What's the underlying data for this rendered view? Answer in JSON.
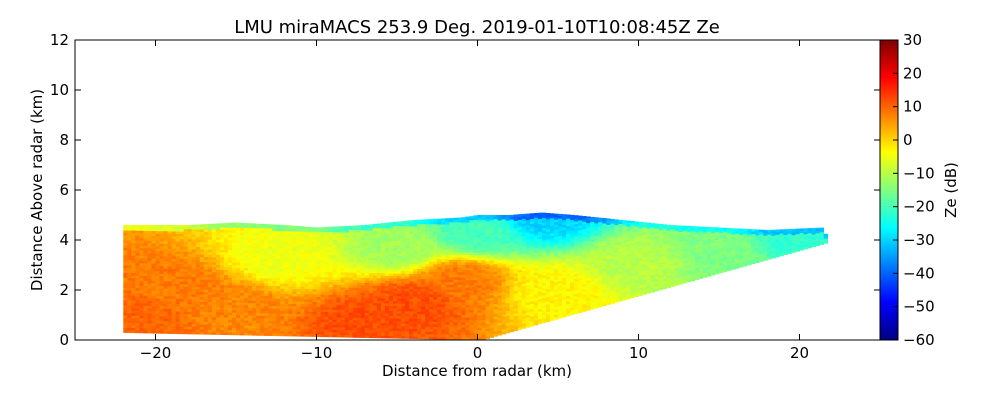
{
  "chart_data": {
    "type": "heatmap",
    "title": "LMU miraMACS 253.9 Deg. 2019-01-10T10:08:45Z  Ze",
    "xlabel": "Distance from radar (km)",
    "ylabel": "Distance Above radar  (km)",
    "xlim": [
      -25,
      25
    ],
    "ylim": [
      0,
      12
    ],
    "x_ticks": [
      -20,
      -10,
      0,
      10,
      20
    ],
    "x_tick_labels": [
      "−20",
      "−10",
      "0",
      "10",
      "20"
    ],
    "y_ticks": [
      0,
      2,
      4,
      6,
      8,
      10,
      12
    ],
    "y_tick_labels": [
      "0",
      "2",
      "4",
      "6",
      "8",
      "10",
      "12"
    ],
    "grid": false,
    "colorbar": {
      "label": "Ze (dB)",
      "range": [
        -60,
        30
      ],
      "colormap": "jet",
      "ticks": [
        30,
        20,
        10,
        0,
        -10,
        -20,
        -30,
        -40,
        -50,
        -60
      ],
      "tick_labels": [
        "30",
        "20",
        "10",
        "0",
        "−10",
        "−20",
        "−30",
        "−40",
        "−50",
        "−60"
      ]
    },
    "echo_region": {
      "left_profile": [
        [
          -22.0,
          0.3
        ],
        [
          -21.5,
          4.6
        ]
      ],
      "top_profile": [
        [
          -21.5,
          4.6
        ],
        [
          -18,
          4.6
        ],
        [
          -15,
          4.7
        ],
        [
          -12,
          4.6
        ],
        [
          -10,
          4.5
        ],
        [
          -7,
          4.6
        ],
        [
          -4,
          4.8
        ],
        [
          -1,
          4.9
        ],
        [
          0,
          5.0
        ],
        [
          2,
          5.0
        ],
        [
          4,
          5.1
        ],
        [
          6,
          5.0
        ],
        [
          9,
          4.8
        ],
        [
          12,
          4.6
        ],
        [
          15,
          4.5
        ],
        [
          18,
          4.4
        ],
        [
          21.5,
          4.5
        ],
        [
          21.8,
          3.9
        ]
      ],
      "bottom_profile": [
        [
          21.8,
          3.9
        ],
        [
          0.3,
          0.0
        ],
        [
          -22.0,
          0.3
        ]
      ],
      "intensity_samples": [
        {
          "x": -21,
          "y": 1.0,
          "ze": 10
        },
        {
          "x": -19,
          "y": 2.0,
          "ze": 8
        },
        {
          "x": -15,
          "y": 1.2,
          "ze": 7
        },
        {
          "x": -7,
          "y": 0.7,
          "ze": 12
        },
        {
          "x": -4,
          "y": 1.5,
          "ze": 12
        },
        {
          "x": -1,
          "y": 2.4,
          "ze": 8
        },
        {
          "x": -12,
          "y": 3.3,
          "ze": -5
        },
        {
          "x": -5,
          "y": 3.7,
          "ze": -12
        },
        {
          "x": 0,
          "y": 4.3,
          "ze": -20
        },
        {
          "x": 4,
          "y": 4.9,
          "ze": -30
        },
        {
          "x": 5,
          "y": 2.0,
          "ze": -3
        },
        {
          "x": 10,
          "y": 3.0,
          "ze": -10
        },
        {
          "x": 15,
          "y": 3.5,
          "ze": -15
        },
        {
          "x": 20,
          "y": 4.0,
          "ze": -22
        }
      ]
    }
  }
}
